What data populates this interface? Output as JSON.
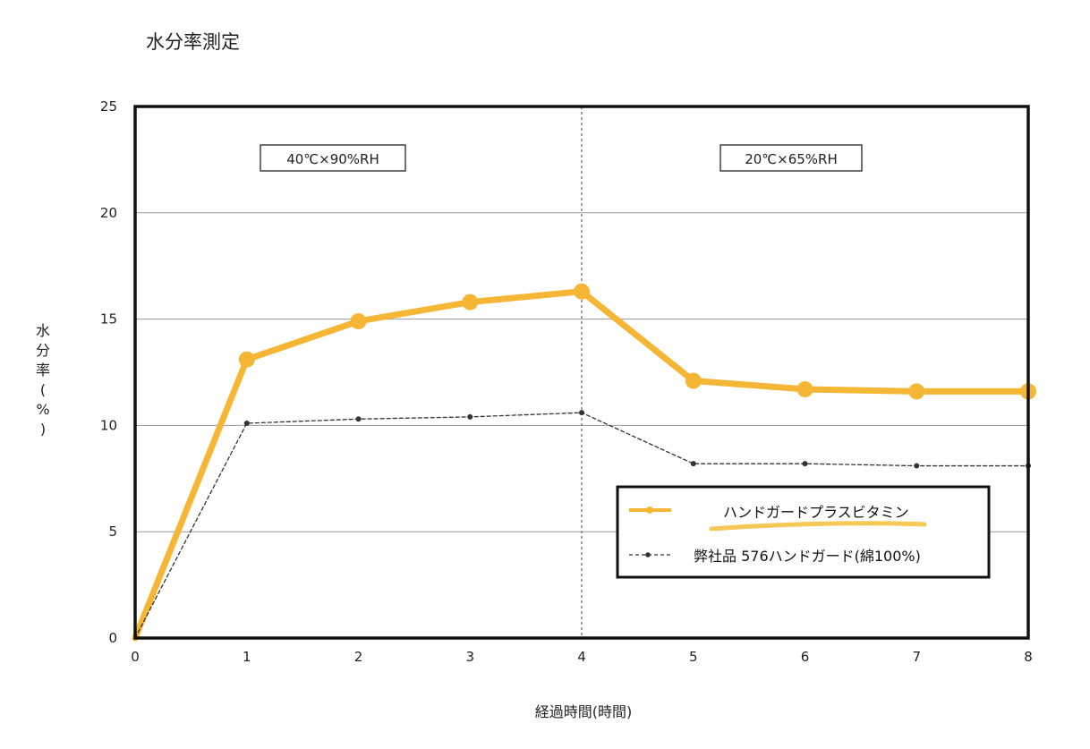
{
  "chart_data": {
    "type": "line",
    "title": "水分率測定",
    "xlabel": "経過時間(時間)",
    "ylabel": "水分率(%)",
    "x": [
      0,
      1,
      2,
      3,
      4,
      5,
      6,
      7,
      8
    ],
    "xlim": [
      0,
      8
    ],
    "ylim": [
      0,
      25
    ],
    "yticks": [
      0,
      5,
      10,
      15,
      20,
      25
    ],
    "xticks": [
      0,
      1,
      2,
      3,
      4,
      5,
      6,
      7,
      8
    ],
    "grid": true,
    "legend_position": "bottom-right",
    "annotations": {
      "divider_x": 4,
      "conditions": [
        "40℃×90%RH",
        "20℃×65%RH"
      ]
    },
    "series": [
      {
        "name": "ハンドガードプラスビタミン",
        "values": [
          0,
          13.1,
          14.9,
          15.8,
          16.3,
          12.1,
          11.7,
          11.6,
          11.6
        ],
        "color": "#F5B535",
        "style": "solid-thick"
      },
      {
        "name": "弊社品 576ハンドガード(綿100%)",
        "values": [
          0,
          10.1,
          10.3,
          10.4,
          10.6,
          8.2,
          8.2,
          8.1,
          8.1
        ],
        "color": "#333333",
        "style": "dashed"
      }
    ]
  }
}
